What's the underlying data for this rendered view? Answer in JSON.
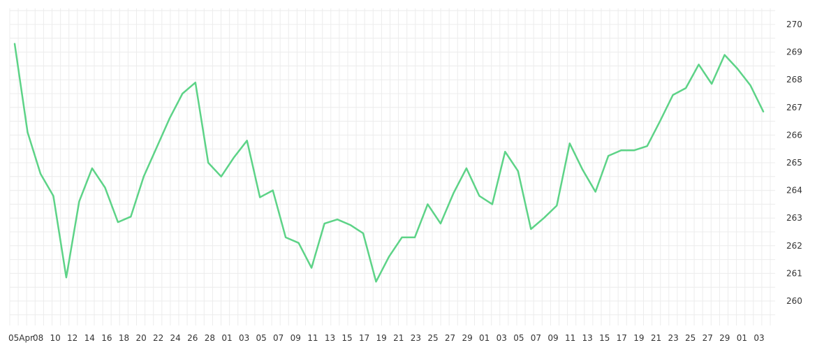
{
  "chart_data": {
    "type": "line",
    "title": "",
    "xlabel": "",
    "ylabel": "",
    "y_axis_position": "right",
    "ylim": [
      259,
      270.7
    ],
    "y_ticks": [
      260,
      261,
      262,
      263,
      264,
      265,
      266,
      267,
      268,
      269,
      270
    ],
    "grid": true,
    "line_color": "#5dd387",
    "x_tick_labels": [
      "05Apr",
      "08",
      "10",
      "12",
      "14",
      "16",
      "18",
      "20",
      "22",
      "24",
      "26",
      "28",
      "01",
      "03",
      "05",
      "07",
      "09",
      "11",
      "13",
      "15",
      "17",
      "19",
      "21",
      "23",
      "25",
      "27",
      "29",
      "01",
      "03",
      "05",
      "07",
      "09",
      "11",
      "13",
      "15",
      "17",
      "19",
      "21",
      "23",
      "25",
      "27",
      "29",
      "01",
      "03"
    ],
    "series": [
      {
        "values": [
          269.3,
          266.1,
          264.6,
          263.8,
          260.85,
          263.6,
          264.8,
          264.1,
          262.85,
          263.05,
          264.5,
          265.55,
          266.6,
          267.5,
          267.9,
          265.0,
          264.5,
          265.2,
          265.8,
          263.75,
          264.0,
          262.3,
          262.1,
          261.2,
          262.8,
          262.95,
          262.75,
          262.45,
          260.7,
          261.6,
          262.3,
          262.3,
          263.5,
          262.8,
          263.9,
          264.8,
          263.8,
          263.5,
          265.4,
          264.7,
          262.6,
          263.0,
          263.45,
          265.7,
          264.75,
          263.95,
          265.25,
          265.45,
          265.45,
          265.6,
          266.5,
          267.45,
          267.7,
          268.55,
          267.85,
          268.9,
          268.4,
          267.8,
          266.85
        ]
      }
    ]
  }
}
